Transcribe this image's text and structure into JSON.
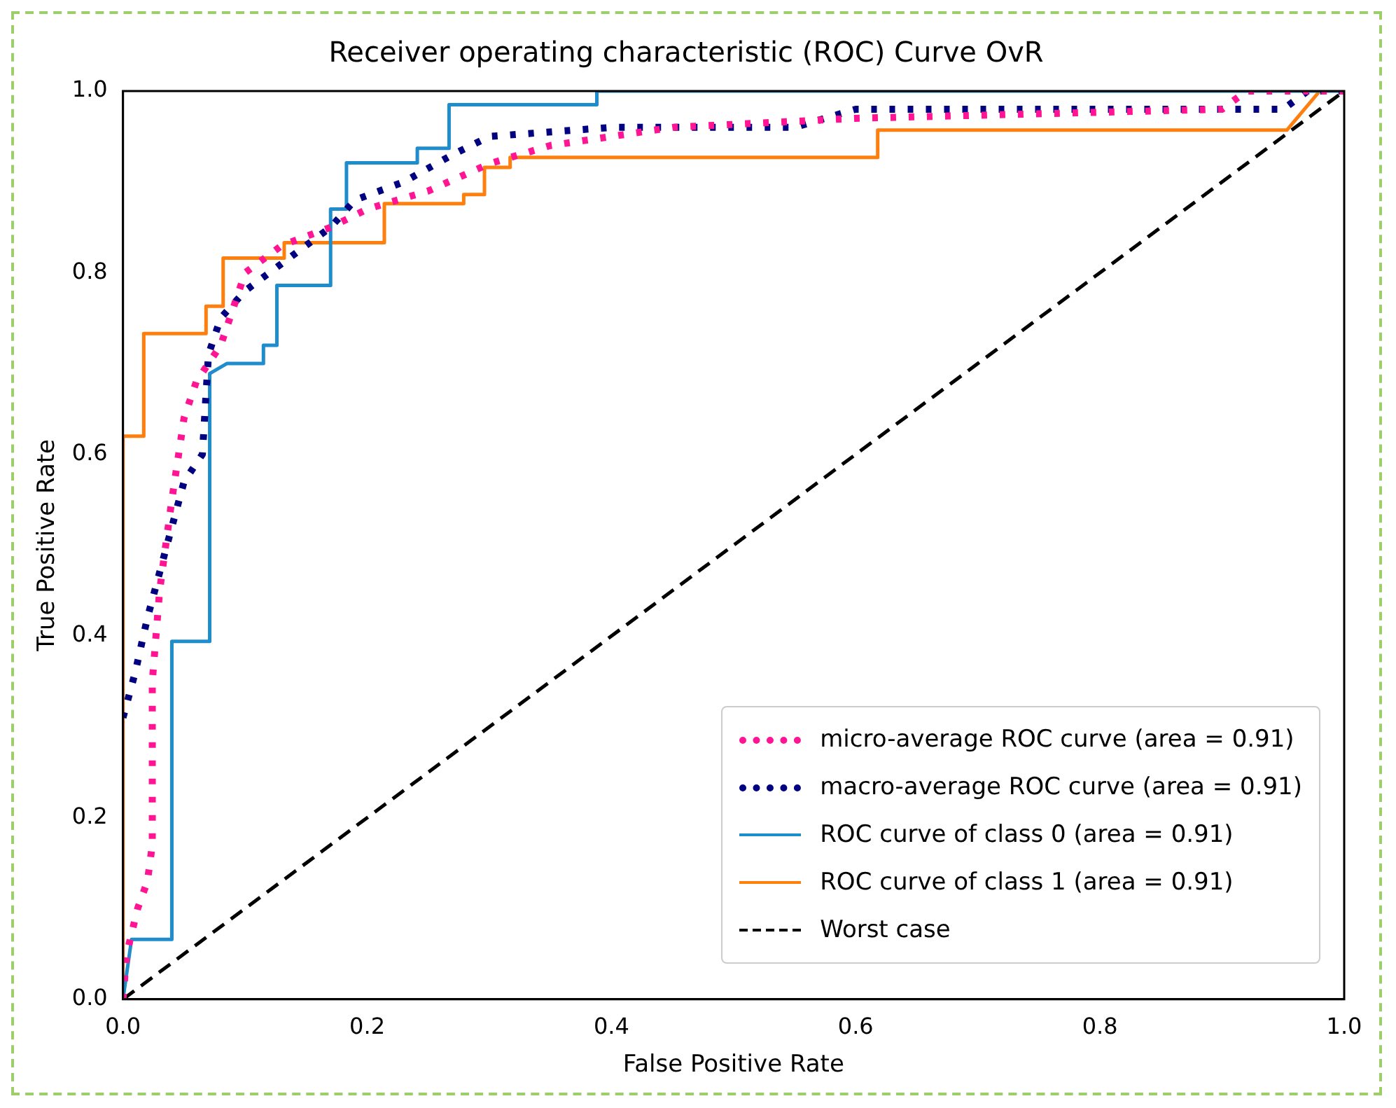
{
  "chart_data": {
    "type": "line",
    "title": "Receiver operating characteristic (ROC) Curve OvR",
    "xlabel": "False Positive Rate",
    "ylabel": "True Positive Rate",
    "xlim": [
      0,
      1
    ],
    "ylim": [
      0,
      1
    ],
    "xticks": [
      {
        "value": 0,
        "label": "0.0"
      },
      {
        "value": 0.2,
        "label": "0.2"
      },
      {
        "value": 0.4,
        "label": "0.4"
      },
      {
        "value": 0.6,
        "label": "0.6"
      },
      {
        "value": 0.8,
        "label": "0.8"
      },
      {
        "value": 1,
        "label": "1.0"
      }
    ],
    "yticks": [
      {
        "value": 0,
        "label": "0.0"
      },
      {
        "value": 0.2,
        "label": "0.2"
      },
      {
        "value": 0.4,
        "label": "0.4"
      },
      {
        "value": 0.6,
        "label": "0.6"
      },
      {
        "value": 0.8,
        "label": "0.8"
      },
      {
        "value": 1,
        "label": "1.0"
      }
    ],
    "grid": false,
    "legend": "bottom right",
    "marker": "none",
    "series": [
      {
        "name": "micro-average ROC curve (area = 0.91)",
        "color": "#ff1493",
        "line_style": "dotted",
        "x": [
          0,
          0.003,
          0.012,
          0.02,
          0.024,
          0.024,
          0.03,
          0.04,
          0.05,
          0.06,
          0.08,
          0.1,
          0.13,
          0.17,
          0.2,
          0.25,
          0.3,
          0.35,
          0.45,
          0.6,
          0.9,
          0.92,
          1
        ],
        "values": [
          0,
          0.05,
          0.1,
          0.13,
          0.17,
          0.35,
          0.45,
          0.55,
          0.64,
          0.68,
          0.72,
          0.8,
          0.83,
          0.85,
          0.87,
          0.89,
          0.92,
          0.94,
          0.96,
          0.97,
          0.98,
          1,
          1
        ]
      },
      {
        "name": "macro-average ROC curve (area = 0.91)",
        "color": "#000080",
        "line_style": "dotted",
        "x": [
          0,
          0.01,
          0.02,
          0.04,
          0.05,
          0.065,
          0.07,
          0.08,
          0.1,
          0.13,
          0.17,
          0.19,
          0.23,
          0.27,
          0.3,
          0.4,
          0.55,
          0.6,
          0.95,
          0.97,
          1
        ],
        "values": [
          0.31,
          0.36,
          0.42,
          0.52,
          0.57,
          0.6,
          0.71,
          0.75,
          0.78,
          0.81,
          0.85,
          0.88,
          0.9,
          0.93,
          0.95,
          0.96,
          0.96,
          0.98,
          0.98,
          1,
          1
        ]
      },
      {
        "name": "ROC curve of class 0 (area = 0.91)",
        "color": "#1f8ccc",
        "line_style": "solid",
        "x": [
          0,
          0.007,
          0.04,
          0.04,
          0.071,
          0.071,
          0.085,
          0.115,
          0.115,
          0.126,
          0.126,
          0.17,
          0.17,
          0.183,
          0.183,
          0.241,
          0.241,
          0.267,
          0.267,
          0.388,
          0.388,
          1
        ],
        "values": [
          0,
          0.066,
          0.066,
          0.394,
          0.394,
          0.689,
          0.7,
          0.7,
          0.72,
          0.72,
          0.786,
          0.786,
          0.87,
          0.87,
          0.921,
          0.921,
          0.937,
          0.937,
          0.985,
          0.985,
          1,
          1
        ]
      },
      {
        "name": "ROC curve of class 1 (area = 0.91)",
        "color": "#ff7f0e",
        "line_style": "solid",
        "x": [
          0,
          0,
          0.017,
          0.017,
          0.068,
          0.068,
          0.082,
          0.082,
          0.132,
          0.132,
          0.214,
          0.214,
          0.279,
          0.279,
          0.296,
          0.296,
          0.317,
          0.317,
          0.618,
          0.618,
          0.953,
          0.98
        ],
        "values": [
          0,
          0.62,
          0.62,
          0.733,
          0.733,
          0.763,
          0.763,
          0.816,
          0.816,
          0.833,
          0.833,
          0.876,
          0.876,
          0.886,
          0.886,
          0.916,
          0.916,
          0.927,
          0.927,
          0.957,
          0.957,
          1
        ]
      },
      {
        "name": "Worst case",
        "color": "#000000",
        "line_style": "dashed",
        "x": [
          0,
          1
        ],
        "values": [
          0,
          1
        ]
      }
    ]
  }
}
